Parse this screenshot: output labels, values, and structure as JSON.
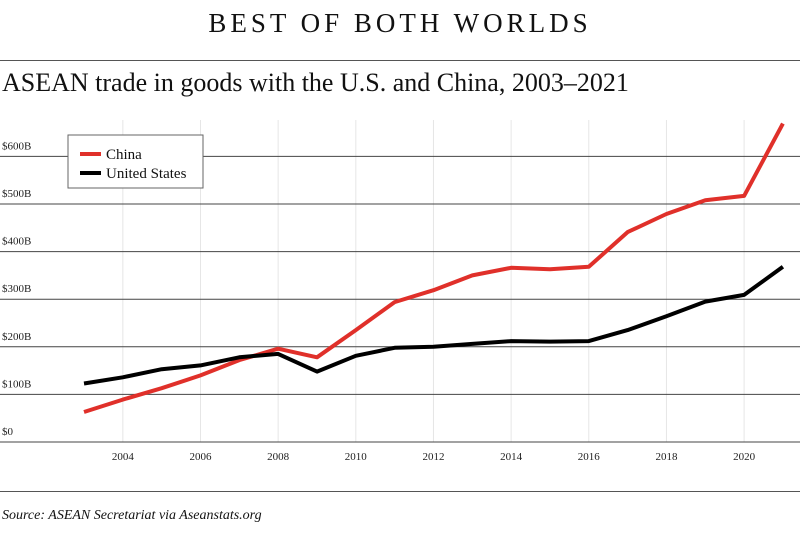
{
  "header": {
    "kicker": "BEST OF BOTH WORLDS",
    "title": "ASEAN trade in goods with the U.S. and China, 2003–2021"
  },
  "footer": {
    "source": "Source: ASEAN Secretariat via Aseanstats.org"
  },
  "colors": {
    "china": "#e0302a",
    "united_states": "#000000",
    "gridline": "#444444",
    "vgrid": "#e6e6e6"
  },
  "chart_data": {
    "type": "line",
    "title": "ASEAN trade in goods with the U.S. and China, 2003–2021",
    "xlabel": "",
    "ylabel": "",
    "x": [
      2003,
      2004,
      2005,
      2006,
      2007,
      2008,
      2009,
      2010,
      2011,
      2012,
      2013,
      2014,
      2015,
      2016,
      2017,
      2018,
      2019,
      2020,
      2021
    ],
    "series": [
      {
        "name": "China",
        "color": "#e0302a",
        "values": [
          63,
          89,
          113,
          140,
          172,
          196,
          178,
          235,
          294,
          319,
          350,
          366,
          363,
          368,
          441,
          479,
          508,
          517,
          669
        ]
      },
      {
        "name": "United States",
        "color": "#000000",
        "values": [
          123,
          136,
          153,
          161,
          178,
          185,
          148,
          181,
          198,
          200,
          206,
          212,
          211,
          212,
          235,
          264,
          295,
          309,
          368
        ]
      }
    ],
    "xticks": [
      2004,
      2006,
      2008,
      2010,
      2012,
      2014,
      2016,
      2018,
      2020
    ],
    "xtick_labels": [
      "2004",
      "2006",
      "2008",
      "2010",
      "2012",
      "2014",
      "2016",
      "2018",
      "2020"
    ],
    "yticks": [
      0,
      100,
      200,
      300,
      400,
      500,
      600
    ],
    "ytick_labels": [
      "$0",
      "$100B",
      "$200B",
      "$300B",
      "$400B",
      "$500B",
      "$600B"
    ],
    "xlim": [
      2002.3,
      2021.3
    ],
    "ylim": [
      0,
      670
    ],
    "grid": "horizontal",
    "legend_position": "top-left"
  }
}
